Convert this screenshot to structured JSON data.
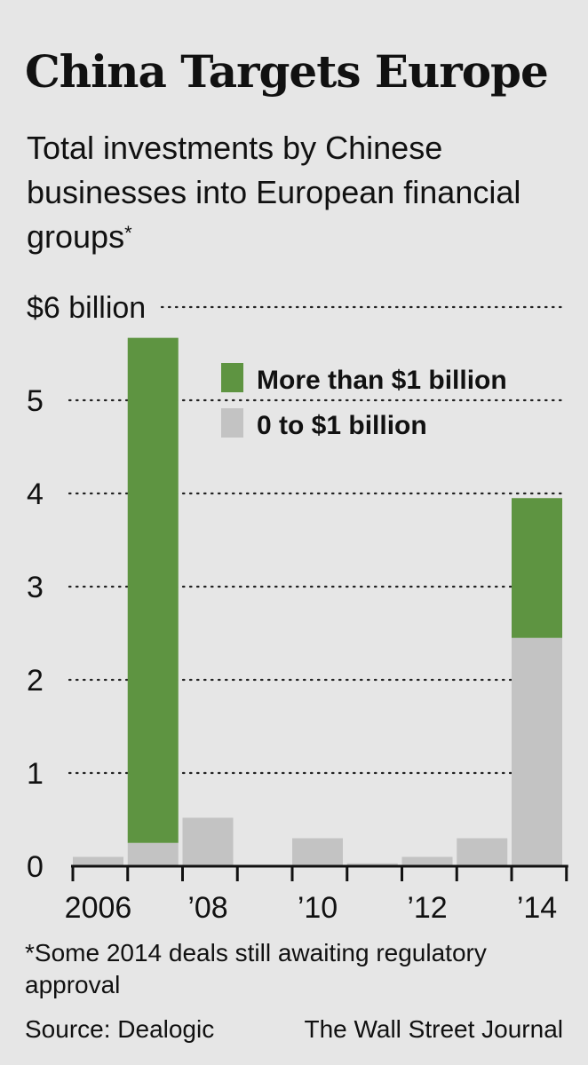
{
  "header": {
    "title": "China Targets Europe",
    "subtitle": "Total investments by Chinese businesses into European financial groups",
    "subtitle_marker": "*"
  },
  "chart_data": {
    "type": "bar",
    "stacked": true,
    "title": "China Targets Europe",
    "subtitle": "Total investments by Chinese businesses into European financial groups*",
    "xlabel": "",
    "ylabel": "",
    "x": [
      2006,
      2007,
      2008,
      2009,
      2010,
      2011,
      2012,
      2013,
      2014
    ],
    "x_tick_labels": [
      {
        "year": 2006,
        "label": "2006"
      },
      {
        "year": 2008,
        "label": "’08"
      },
      {
        "year": 2010,
        "label": "’10"
      },
      {
        "year": 2012,
        "label": "’12"
      },
      {
        "year": 2014,
        "label": "’14"
      }
    ],
    "y_tick_labels": [
      {
        "value": 0,
        "label": "0"
      },
      {
        "value": 1,
        "label": "1"
      },
      {
        "value": 2,
        "label": "2"
      },
      {
        "value": 3,
        "label": "3"
      },
      {
        "value": 4,
        "label": "4"
      },
      {
        "value": 5,
        "label": "5"
      },
      {
        "value": 6,
        "label": "$6 billion"
      }
    ],
    "ylim": [
      0,
      6
    ],
    "grid": true,
    "legend_position": "top-right",
    "series": [
      {
        "name": "0 to $1 billion",
        "color": "#c3c3c3",
        "values": [
          0.1,
          0.25,
          0.52,
          0,
          0.3,
          0.03,
          0.1,
          0.3,
          2.45
        ]
      },
      {
        "name": "More than $1 billion",
        "color": "#5e9441",
        "values": [
          0,
          5.42,
          0,
          0,
          0,
          0,
          0,
          0,
          1.5
        ]
      }
    ],
    "legend": [
      {
        "name": "More than $1 billion",
        "color": "#5e9441"
      },
      {
        "name": "0 to $1 billion",
        "color": "#c3c3c3"
      }
    ]
  },
  "footer": {
    "footnote": "*Some 2014 deals still awaiting regulatory approval",
    "source": "Source: Dealogic",
    "credit": "The Wall Street Journal"
  }
}
